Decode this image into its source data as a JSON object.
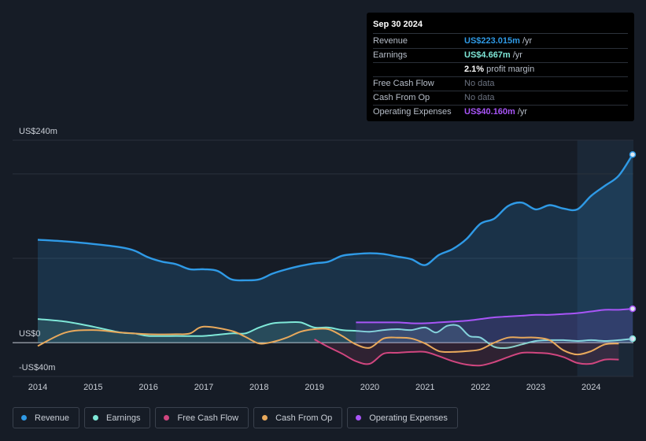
{
  "tooltip": {
    "date": "Sep 30 2024",
    "rows": [
      {
        "label": "Revenue",
        "value": "US$223.015m",
        "unit": "/yr",
        "color": "#2f9ae6"
      },
      {
        "label": "Earnings",
        "value": "US$4.667m",
        "unit": "/yr",
        "color": "#7fe8d8"
      },
      {
        "label": "",
        "value": "2.1%",
        "unit": "profit margin",
        "color": "#ffffff"
      },
      {
        "label": "Free Cash Flow",
        "value": "No data",
        "unit": "",
        "color": "#6b7280"
      },
      {
        "label": "Cash From Op",
        "value": "No data",
        "unit": "",
        "color": "#6b7280"
      },
      {
        "label": "Operating Expenses",
        "value": "US$40.160m",
        "unit": "/yr",
        "color": "#a855f7"
      }
    ]
  },
  "legend": [
    {
      "label": "Revenue",
      "color": "#2f9ae6"
    },
    {
      "label": "Earnings",
      "color": "#7fe8d8"
    },
    {
      "label": "Free Cash Flow",
      "color": "#d0467f"
    },
    {
      "label": "Cash From Op",
      "color": "#e8a95c"
    },
    {
      "label": "Operating Expenses",
      "color": "#a855f7"
    }
  ],
  "chart_data": {
    "type": "line",
    "ylabel_top": "US$240m",
    "ylabel_zero": "US$0",
    "ylabel_bottom": "-US$40m",
    "ylim": [
      -40,
      240
    ],
    "xlim": [
      2014,
      2024.75
    ],
    "x_ticks": [
      "2014",
      "2015",
      "2016",
      "2017",
      "2018",
      "2019",
      "2020",
      "2021",
      "2022",
      "2023",
      "2024"
    ],
    "highlight_from": 2023.75,
    "series": [
      {
        "name": "Revenue",
        "color": "#2f9ae6",
        "fill": true,
        "points": [
          [
            2014,
            122
          ],
          [
            2014.5,
            120
          ],
          [
            2015,
            117
          ],
          [
            2015.5,
            113
          ],
          [
            2015.75,
            109
          ],
          [
            2016,
            101
          ],
          [
            2016.25,
            96
          ],
          [
            2016.5,
            93
          ],
          [
            2016.75,
            87
          ],
          [
            2017,
            87
          ],
          [
            2017.25,
            85
          ],
          [
            2017.5,
            75
          ],
          [
            2017.75,
            74
          ],
          [
            2018,
            75
          ],
          [
            2018.25,
            82
          ],
          [
            2018.5,
            87
          ],
          [
            2018.75,
            91
          ],
          [
            2019,
            94
          ],
          [
            2019.25,
            96
          ],
          [
            2019.5,
            103
          ],
          [
            2019.75,
            105
          ],
          [
            2020,
            106
          ],
          [
            2020.25,
            105
          ],
          [
            2020.5,
            102
          ],
          [
            2020.75,
            99
          ],
          [
            2021,
            92
          ],
          [
            2021.25,
            104
          ],
          [
            2021.5,
            111
          ],
          [
            2021.75,
            123
          ],
          [
            2022,
            141
          ],
          [
            2022.25,
            147
          ],
          [
            2022.5,
            162
          ],
          [
            2022.75,
            166
          ],
          [
            2023,
            158
          ],
          [
            2023.25,
            163
          ],
          [
            2023.5,
            159
          ],
          [
            2023.75,
            158
          ],
          [
            2024,
            174
          ],
          [
            2024.25,
            186
          ],
          [
            2024.5,
            198
          ],
          [
            2024.75,
            223
          ]
        ]
      },
      {
        "name": "Earnings",
        "color": "#7fe8d8",
        "fill": true,
        "points": [
          [
            2014,
            28
          ],
          [
            2014.5,
            25
          ],
          [
            2015,
            19
          ],
          [
            2015.5,
            12
          ],
          [
            2015.75,
            11
          ],
          [
            2016,
            8
          ],
          [
            2016.5,
            8
          ],
          [
            2017,
            8
          ],
          [
            2017.5,
            11
          ],
          [
            2017.75,
            11
          ],
          [
            2018,
            18
          ],
          [
            2018.25,
            23
          ],
          [
            2018.5,
            24
          ],
          [
            2018.75,
            24
          ],
          [
            2019,
            18
          ],
          [
            2019.25,
            18
          ],
          [
            2019.5,
            15
          ],
          [
            2019.75,
            14
          ],
          [
            2020,
            13
          ],
          [
            2020.25,
            15
          ],
          [
            2020.5,
            16
          ],
          [
            2020.75,
            15
          ],
          [
            2021,
            18
          ],
          [
            2021.2,
            12
          ],
          [
            2021.4,
            20
          ],
          [
            2021.6,
            20
          ],
          [
            2021.8,
            8
          ],
          [
            2022,
            6
          ],
          [
            2022.25,
            -5
          ],
          [
            2022.5,
            -6
          ],
          [
            2022.75,
            -2
          ],
          [
            2023,
            2
          ],
          [
            2023.25,
            3
          ],
          [
            2023.5,
            3
          ],
          [
            2023.75,
            2
          ],
          [
            2024,
            3
          ],
          [
            2024.25,
            2
          ],
          [
            2024.5,
            3
          ],
          [
            2024.75,
            4.667
          ]
        ]
      },
      {
        "name": "Operating Expenses",
        "color": "#a855f7",
        "fill": true,
        "points": [
          [
            2019.75,
            24
          ],
          [
            2020,
            24
          ],
          [
            2020.5,
            24
          ],
          [
            2020.75,
            23
          ],
          [
            2021,
            23
          ],
          [
            2021.25,
            24
          ],
          [
            2021.5,
            25
          ],
          [
            2021.75,
            26
          ],
          [
            2022,
            28
          ],
          [
            2022.25,
            30
          ],
          [
            2022.5,
            31
          ],
          [
            2022.75,
            32
          ],
          [
            2023,
            33
          ],
          [
            2023.25,
            33
          ],
          [
            2023.5,
            34
          ],
          [
            2023.75,
            35
          ],
          [
            2024,
            37
          ],
          [
            2024.25,
            39
          ],
          [
            2024.5,
            39
          ],
          [
            2024.75,
            40.16
          ]
        ]
      },
      {
        "name": "Free Cash Flow",
        "color": "#d0467f",
        "fill": true,
        "points": [
          [
            2019,
            4
          ],
          [
            2019.25,
            -5
          ],
          [
            2019.5,
            -13
          ],
          [
            2019.75,
            -22
          ],
          [
            2020,
            -25
          ],
          [
            2020.25,
            -13
          ],
          [
            2020.5,
            -12
          ],
          [
            2020.75,
            -11
          ],
          [
            2021,
            -11
          ],
          [
            2021.25,
            -16
          ],
          [
            2021.5,
            -22
          ],
          [
            2021.75,
            -26
          ],
          [
            2022,
            -27
          ],
          [
            2022.25,
            -23
          ],
          [
            2022.5,
            -17
          ],
          [
            2022.75,
            -12
          ],
          [
            2023,
            -12
          ],
          [
            2023.25,
            -13
          ],
          [
            2023.5,
            -17
          ],
          [
            2023.75,
            -24
          ],
          [
            2024,
            -25
          ],
          [
            2024.25,
            -20
          ],
          [
            2024.5,
            -20
          ]
        ]
      },
      {
        "name": "Cash From Op",
        "color": "#e8a95c",
        "fill": false,
        "points": [
          [
            2014,
            -4
          ],
          [
            2014.5,
            12
          ],
          [
            2015,
            15
          ],
          [
            2015.5,
            12
          ],
          [
            2016,
            10
          ],
          [
            2016.5,
            10
          ],
          [
            2016.75,
            11
          ],
          [
            2017,
            19
          ],
          [
            2017.5,
            14
          ],
          [
            2017.75,
            7
          ],
          [
            2018,
            -1
          ],
          [
            2018.25,
            1
          ],
          [
            2018.5,
            6
          ],
          [
            2018.75,
            13
          ],
          [
            2019,
            16
          ],
          [
            2019.25,
            16
          ],
          [
            2019.5,
            8
          ],
          [
            2019.75,
            -2
          ],
          [
            2020,
            -6
          ],
          [
            2020.25,
            5
          ],
          [
            2020.5,
            6
          ],
          [
            2020.75,
            5
          ],
          [
            2021,
            -1
          ],
          [
            2021.25,
            -10
          ],
          [
            2021.5,
            -11
          ],
          [
            2021.75,
            -10
          ],
          [
            2022,
            -8
          ],
          [
            2022.25,
            0
          ],
          [
            2022.5,
            6
          ],
          [
            2022.75,
            6
          ],
          [
            2023,
            6
          ],
          [
            2023.25,
            3
          ],
          [
            2023.5,
            -9
          ],
          [
            2023.75,
            -14
          ],
          [
            2024,
            -10
          ],
          [
            2024.25,
            -2
          ],
          [
            2024.5,
            -1
          ]
        ]
      }
    ]
  }
}
